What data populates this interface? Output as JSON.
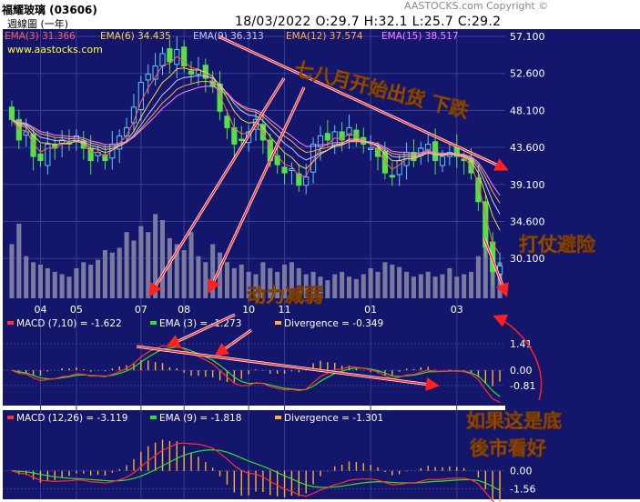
{
  "header": {
    "title": "福耀玻璃 (03606)",
    "period": "週線圖 (一年)",
    "quote": "18/03/2022   O:29.7   H:32.1   L:25.7   C:29.2",
    "copyright": "AASTOCKS.com Copyright ©",
    "watermark": "www.aastocks.com"
  },
  "colors": {
    "background": "#14166b",
    "grid": "#3a3d8c",
    "up_candle": "#5ec8f5",
    "down_candle": "#55e046",
    "volume": "#7a7aa0",
    "ema3": "#ff6060",
    "ema6": "#ffd040",
    "ema9": "#c8c8ff",
    "ema12": "#ffb040",
    "ema15": "#ff80ff",
    "macd": "#ff3030",
    "signal": "#30e030",
    "divergence": "#ffb030",
    "annotation_text": "#ff9a00",
    "arrow": "#ff2020"
  },
  "chart_data": [
    {
      "type": "candlestick",
      "x_tick_labels": [
        "04",
        "05",
        "07",
        "08",
        "10",
        "11",
        "01",
        "03"
      ],
      "ema_legend": [
        {
          "label": "EMA(3) 31.366"
        },
        {
          "label": "EMA(6) 34.435"
        },
        {
          "label": "EMA(9) 36.313"
        },
        {
          "label": "EMA(12) 37.574"
        },
        {
          "label": "EMA(15) 38.517"
        }
      ],
      "y_tick_labels": [
        "57.100",
        "52.600",
        "48.100",
        "43.600",
        "39.100",
        "34.600",
        "30.100"
      ],
      "ylim": [
        25.7,
        57.1
      ],
      "close": [
        47.0,
        44.5,
        45.5,
        42.5,
        42.0,
        44.0,
        43.5,
        44.5,
        44.0,
        45.0,
        43.5,
        42.0,
        43.0,
        42.0,
        44.0,
        45.0,
        46.0,
        48.5,
        51.5,
        52.5,
        53.5,
        55.0,
        54.0,
        55.5,
        53.5,
        52.5,
        53.0,
        52.0,
        51.0,
        48.0,
        46.0,
        44.0,
        44.5,
        45.5,
        47.0,
        44.5,
        42.0,
        41.5,
        40.5,
        41.0,
        39.0,
        40.0,
        44.0,
        45.0,
        44.5,
        45.5,
        44.5,
        46.0,
        44.5,
        44.0,
        43.5,
        42.5,
        40.5,
        40.0,
        42.0,
        43.0,
        42.0,
        43.5,
        44.0,
        42.0,
        42.5,
        43.0,
        42.5,
        42.0,
        40.5,
        37.0,
        31.5,
        28.5,
        29.2
      ],
      "volume_rel": [
        0.45,
        0.62,
        0.35,
        0.3,
        0.28,
        0.25,
        0.22,
        0.2,
        0.18,
        0.25,
        0.3,
        0.28,
        0.32,
        0.4,
        0.38,
        0.42,
        0.55,
        0.48,
        0.6,
        0.55,
        0.7,
        0.65,
        0.5,
        0.45,
        0.4,
        0.55,
        0.35,
        0.3,
        0.45,
        0.38,
        0.3,
        0.25,
        0.28,
        0.22,
        0.2,
        0.3,
        0.25,
        0.22,
        0.28,
        0.3,
        0.25,
        0.2,
        0.22,
        0.18,
        0.15,
        0.2,
        0.22,
        0.18,
        0.16,
        0.2,
        0.25,
        0.22,
        0.3,
        0.28,
        0.26,
        0.22,
        0.18,
        0.2,
        0.22,
        0.18,
        0.2,
        0.25,
        0.18,
        0.2,
        0.22,
        0.35,
        0.45,
        0.4,
        0.3
      ]
    },
    {
      "type": "line",
      "legend": [
        {
          "label": "MACD (7,10) = -1.622"
        },
        {
          "label": "EMA (3) = -1.273"
        },
        {
          "label": "Divergence = -0.349"
        }
      ],
      "y_tick_labels": [
        "1.41",
        "0.00",
        "-0.81"
      ],
      "ylim": [
        -1.6,
        2.2
      ]
    },
    {
      "type": "line",
      "legend": [
        {
          "label": "MACD (12,26) = -3.119"
        },
        {
          "label": "EMA (9) = -1.818"
        },
        {
          "label": "Divergence = -1.301"
        }
      ],
      "y_tick_labels": [
        "0.00",
        "-1.56"
      ],
      "ylim": [
        -2.0,
        4.0
      ]
    }
  ],
  "annotations": {
    "top": "七八月开始出货 下跌",
    "right": "打仗避险",
    "middle": "动力减弱",
    "bottom_line1": "如果这是底",
    "bottom_line2": "後市看好"
  }
}
